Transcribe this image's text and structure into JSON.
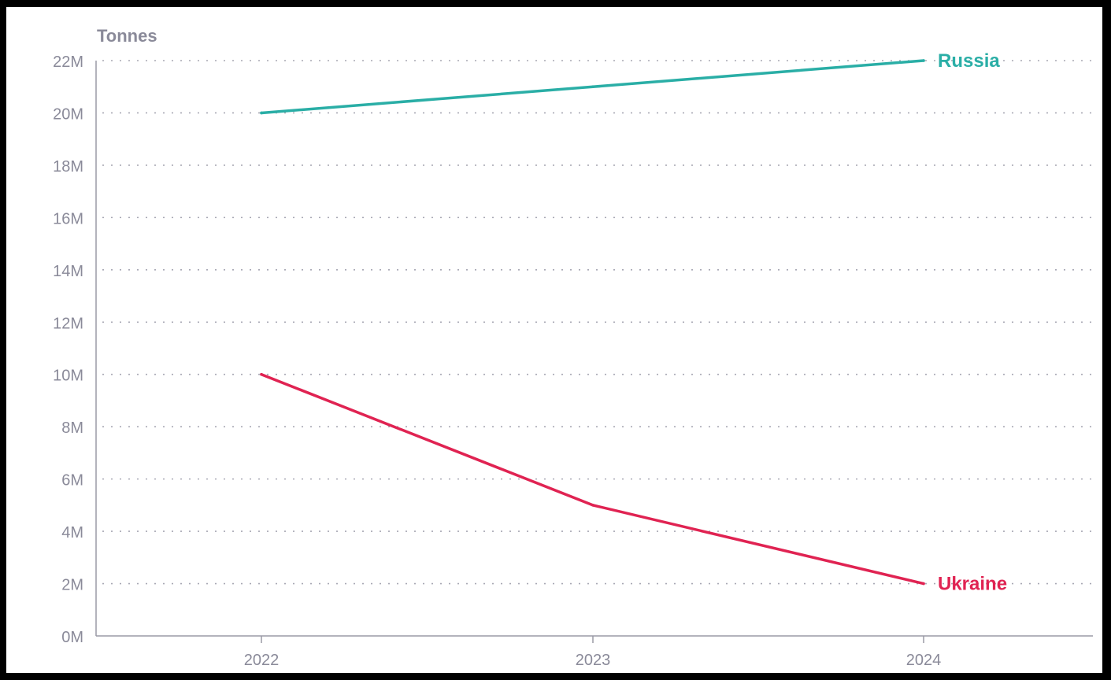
{
  "colors": {
    "background": "#ffffff",
    "frame": "#000000",
    "axis": "#9a9aa6",
    "grid": "#a8a8b4",
    "tick_text": "#8a8a99",
    "russia": "#2aaea6",
    "ukraine": "#e02352"
  },
  "chart_data": {
    "type": "line",
    "title": "",
    "xlabel": "",
    "ylabel": "Tonnes",
    "x": [
      "2022",
      "2023",
      "2024"
    ],
    "ylim": [
      0,
      22000000
    ],
    "yticks": [
      0,
      2000000,
      4000000,
      6000000,
      8000000,
      10000000,
      12000000,
      14000000,
      16000000,
      18000000,
      20000000,
      22000000
    ],
    "ytick_labels": [
      "0M",
      "2M",
      "4M",
      "6M",
      "8M",
      "10M",
      "12M",
      "14M",
      "16M",
      "18M",
      "20M",
      "22M"
    ],
    "grid": "horizontal dotted",
    "legend": "direct labels at line ends",
    "series": [
      {
        "name": "Russia",
        "color": "#2aaea6",
        "values": [
          20000000,
          21000000,
          22000000
        ]
      },
      {
        "name": "Ukraine",
        "color": "#e02352",
        "values": [
          10000000,
          5000000,
          2000000
        ]
      }
    ]
  }
}
